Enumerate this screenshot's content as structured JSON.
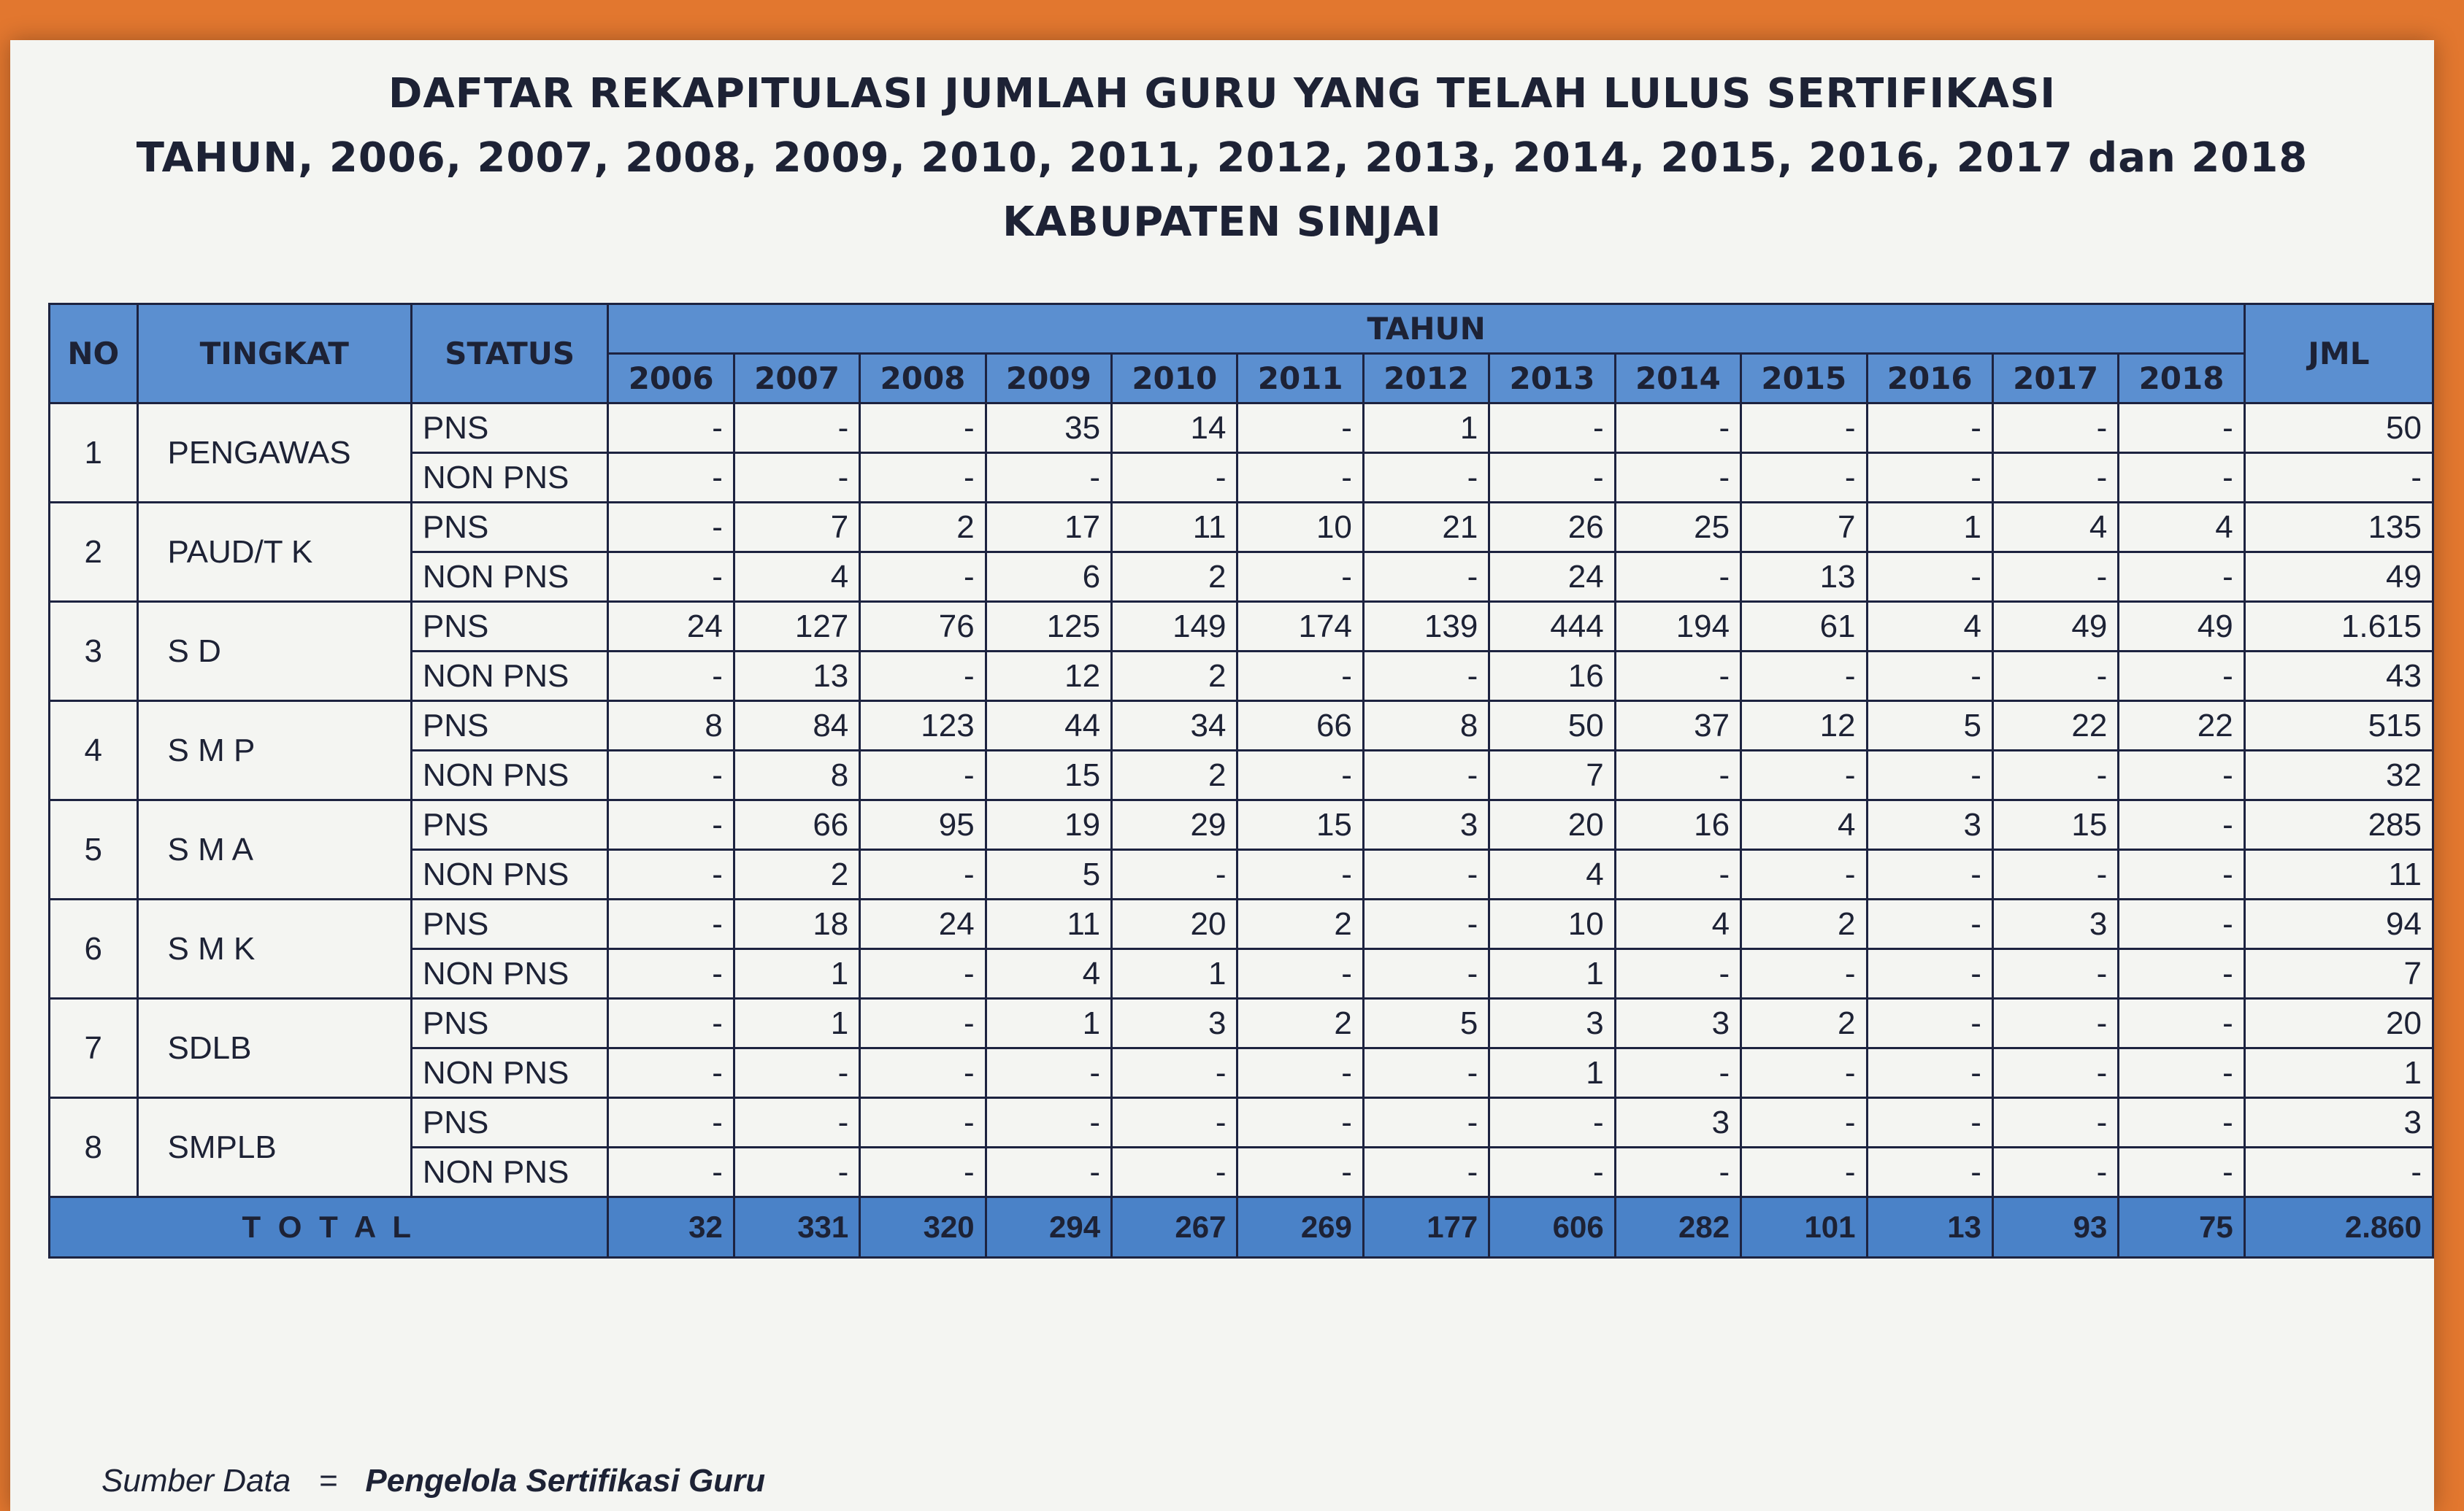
{
  "header": {
    "title": [
      "DAFTAR REKAPITULASI JUMLAH GURU YANG TELAH LULUS SERTIFIKASI",
      "TAHUN, 2006, 2007, 2008, 2009, 2010, 2011, 2012, 2013, 2014, 2015, 2016, 2017 dan 2018",
      "KABUPATEN SINJAI"
    ]
  },
  "table": {
    "headers": {
      "no": "NO",
      "tingkat": "TINGKAT",
      "status": "STATUS",
      "tahun": "TAHUN",
      "jml": "JML"
    },
    "years": [
      "2006",
      "2007",
      "2008",
      "2009",
      "2010",
      "2011",
      "2012",
      "2013",
      "2014",
      "2015",
      "2016",
      "2017",
      "2018"
    ],
    "rows": [
      {
        "no": "1",
        "tingkat": "PENGAWAS",
        "status": "PNS",
        "values": [
          "-",
          "-",
          "-",
          "35",
          "14",
          "-",
          "1",
          "-",
          "-",
          "-",
          "-",
          "-",
          "-"
        ],
        "jml": "50"
      },
      {
        "status": "NON PNS",
        "values": [
          "-",
          "-",
          "-",
          "-",
          "-",
          "-",
          "-",
          "-",
          "-",
          "-",
          "-",
          "-",
          "-"
        ],
        "jml": "-"
      },
      {
        "no": "2",
        "tingkat": "PAUD/T K",
        "status": "PNS",
        "values": [
          "-",
          "7",
          "2",
          "17",
          "11",
          "10",
          "21",
          "26",
          "25",
          "7",
          "1",
          "4",
          "4"
        ],
        "jml": "135"
      },
      {
        "status": "NON PNS",
        "values": [
          "-",
          "4",
          "-",
          "6",
          "2",
          "-",
          "-",
          "24",
          "-",
          "13",
          "-",
          "-",
          "-"
        ],
        "jml": "49"
      },
      {
        "no": "3",
        "tingkat": "S D",
        "status": "PNS",
        "values": [
          "24",
          "127",
          "76",
          "125",
          "149",
          "174",
          "139",
          "444",
          "194",
          "61",
          "4",
          "49",
          "49"
        ],
        "jml": "1.615"
      },
      {
        "status": "NON PNS",
        "values": [
          "-",
          "13",
          "-",
          "12",
          "2",
          "-",
          "-",
          "16",
          "-",
          "-",
          "-",
          "-",
          "-"
        ],
        "jml": "43"
      },
      {
        "no": "4",
        "tingkat": "S M P",
        "status": "PNS",
        "values": [
          "8",
          "84",
          "123",
          "44",
          "34",
          "66",
          "8",
          "50",
          "37",
          "12",
          "5",
          "22",
          "22"
        ],
        "jml": "515"
      },
      {
        "status": "NON PNS",
        "values": [
          "-",
          "8",
          "-",
          "15",
          "2",
          "-",
          "-",
          "7",
          "-",
          "-",
          "-",
          "-",
          "-"
        ],
        "jml": "32"
      },
      {
        "no": "5",
        "tingkat": "S M A",
        "status": "PNS",
        "values": [
          "-",
          "66",
          "95",
          "19",
          "29",
          "15",
          "3",
          "20",
          "16",
          "4",
          "3",
          "15",
          "-"
        ],
        "jml": "285"
      },
      {
        "status": "NON PNS",
        "values": [
          "-",
          "2",
          "-",
          "5",
          "-",
          "-",
          "-",
          "4",
          "-",
          "-",
          "-",
          "-",
          "-"
        ],
        "jml": "11"
      },
      {
        "no": "6",
        "tingkat": "S M K",
        "status": "PNS",
        "values": [
          "-",
          "18",
          "24",
          "11",
          "20",
          "2",
          "-",
          "10",
          "4",
          "2",
          "-",
          "3",
          "-"
        ],
        "jml": "94"
      },
      {
        "status": "NON PNS",
        "values": [
          "-",
          "1",
          "-",
          "4",
          "1",
          "-",
          "-",
          "1",
          "-",
          "-",
          "-",
          "-",
          "-"
        ],
        "jml": "7"
      },
      {
        "no": "7",
        "tingkat": "SDLB",
        "status": "PNS",
        "values": [
          "-",
          "1",
          "-",
          "1",
          "3",
          "2",
          "5",
          "3",
          "3",
          "2",
          "-",
          "-",
          "-"
        ],
        "jml": "20"
      },
      {
        "status": "NON PNS",
        "values": [
          "-",
          "-",
          "-",
          "-",
          "-",
          "-",
          "-",
          "1",
          "-",
          "-",
          "-",
          "-",
          "-"
        ],
        "jml": "1"
      },
      {
        "no": "8",
        "tingkat": "SMPLB",
        "status": "PNS",
        "values": [
          "-",
          "-",
          "-",
          "-",
          "-",
          "-",
          "-",
          "-",
          "3",
          "-",
          "-",
          "-",
          "-"
        ],
        "jml": "3"
      },
      {
        "status": "NON PNS",
        "values": [
          "-",
          "-",
          "-",
          "-",
          "-",
          "-",
          "-",
          "-",
          "-",
          "-",
          "-",
          "-",
          "-"
        ],
        "jml": "-"
      }
    ],
    "total": {
      "label": "T O T A L",
      "values": [
        "32",
        "331",
        "320",
        "294",
        "267",
        "269",
        "177",
        "606",
        "282",
        "101",
        "13",
        "93",
        "75"
      ],
      "jml": "2.860"
    }
  },
  "footer": {
    "label": "Sumber Data",
    "separator": "=",
    "source": "Pengelola Sertifikasi Guru"
  }
}
